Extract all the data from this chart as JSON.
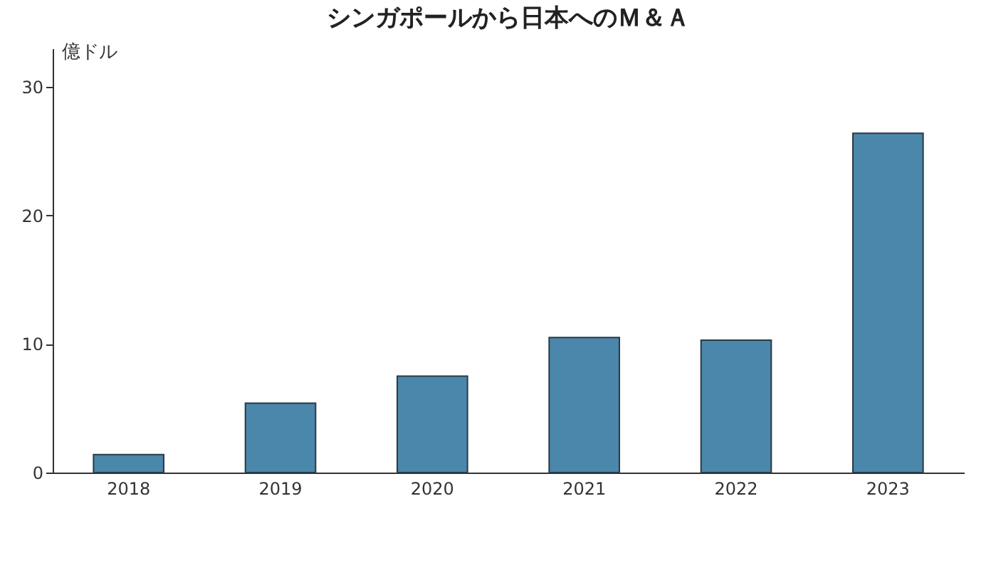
{
  "chart_data": {
    "type": "bar",
    "title": "シンガポールから日本へのＭ＆Ａ",
    "ylabel": "億ドル",
    "categories": [
      "2018",
      "2019",
      "2020",
      "2021",
      "2022",
      "2023"
    ],
    "values": [
      1.4,
      5.4,
      7.5,
      10.5,
      10.3,
      26.4
    ],
    "color": "#4a87ab",
    "ylim": [
      0,
      33
    ],
    "yticks": [
      0,
      10,
      20,
      30
    ],
    "grid": false
  }
}
